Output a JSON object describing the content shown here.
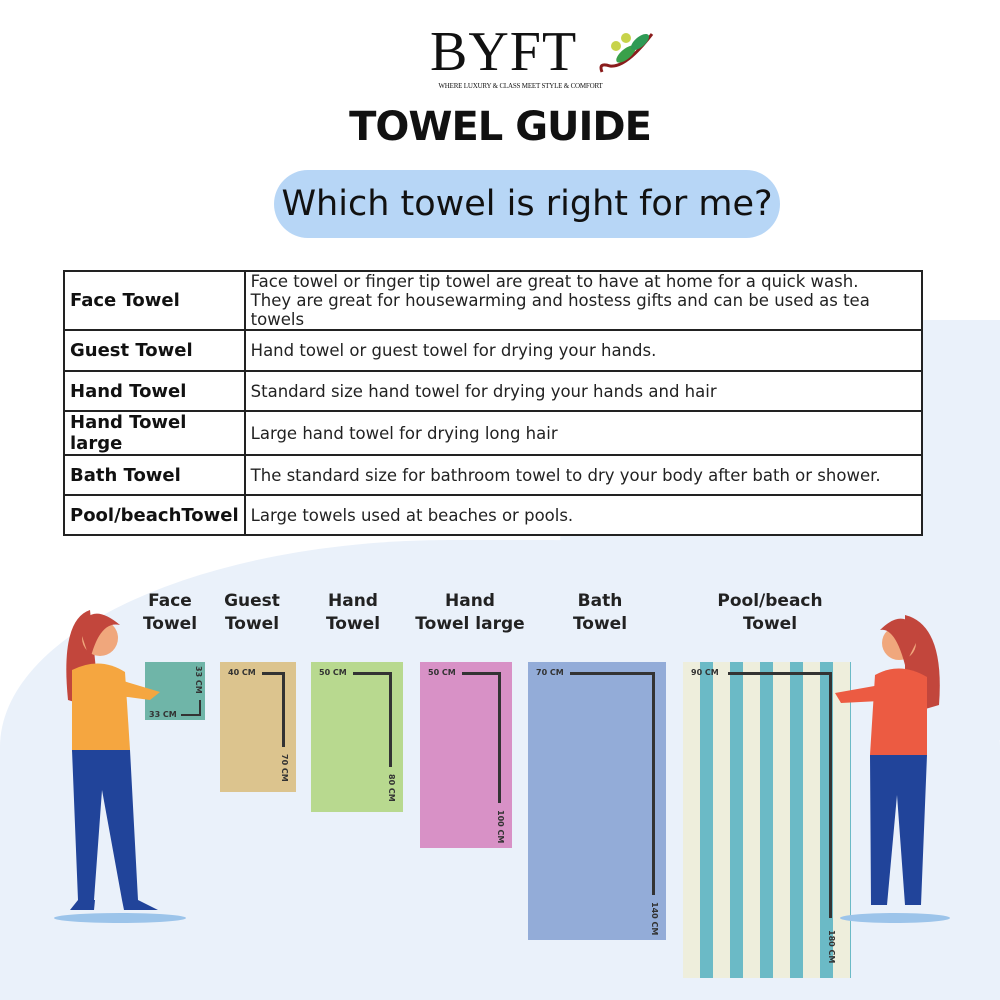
{
  "brand": {
    "name": "BYFT",
    "tagline": "WHERE LUXURY & CLASS MEET STYLE & COMFORT"
  },
  "title": "TOWEL GUIDE",
  "subtitle": "Which towel is right for me?",
  "table": [
    {
      "name": "Face Towel",
      "desc": "Face towel or finger tip towel are great to have at home for a quick wash.",
      "desc2": "They are great for housewarming and hostess gifts and can be used as tea towels"
    },
    {
      "name": "Guest Towel",
      "desc": "Hand towel or guest towel for drying your hands."
    },
    {
      "name": "Hand Towel",
      "desc": "Standard size hand towel for drying your hands and hair"
    },
    {
      "name": "Hand Towel large",
      "desc": "Large hand towel for drying long hair"
    },
    {
      "name": "Bath Towel",
      "desc": "The standard size for bathroom towel to dry your body after bath or shower."
    },
    {
      "name": "Pool/beachTowel",
      "desc": "Large towels used at beaches or pools."
    }
  ],
  "towels": [
    {
      "l1": "Face",
      "l2": "Towel",
      "w": "33 CM",
      "h": "33 CM",
      "color": "#6fb5a8"
    },
    {
      "l1": "Guest",
      "l2": "Towel",
      "w": "40 CM",
      "h": "70 CM",
      "color": "#dcc48e"
    },
    {
      "l1": "Hand",
      "l2": "Towel",
      "w": "50 CM",
      "h": "80 CM",
      "color": "#b8d98f"
    },
    {
      "l1": "Hand",
      "l2": "Towel large",
      "w": "50 CM",
      "h": "100 CM",
      "color": "#d891c6"
    },
    {
      "l1": "Bath",
      "l2": "Towel",
      "w": "70 CM",
      "h": "140 CM",
      "color": "#93acd8"
    },
    {
      "l1": "Pool/beach",
      "l2": "Towel",
      "w": "90 CM",
      "h": "180 CM",
      "color": "#eeeedc",
      "stripe": "#6bbac6"
    }
  ]
}
